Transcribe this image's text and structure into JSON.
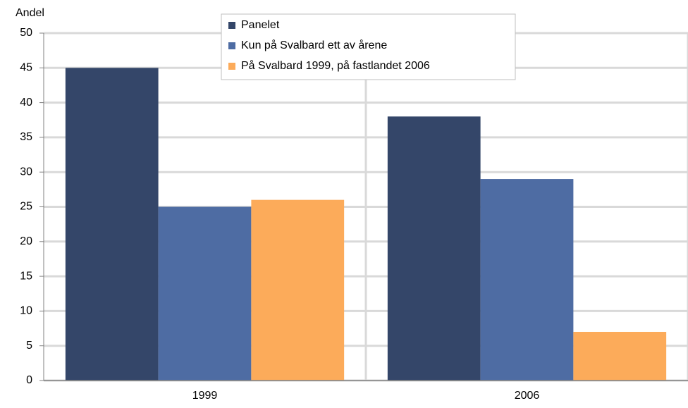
{
  "chart_data": {
    "type": "bar",
    "y_label": "Andel",
    "categories": [
      "1999",
      "2006"
    ],
    "series": [
      {
        "name": "Panelet",
        "color": "#344669",
        "values": [
          45,
          38
        ]
      },
      {
        "name": "Kun på Svalbard ett av årene",
        "color": "#4e6ca3",
        "values": [
          25,
          29
        ]
      },
      {
        "name": "På Svalbard 1999, på fastlandet 2006",
        "color": "#fcab5a",
        "values": [
          26,
          7
        ]
      }
    ],
    "ylim": [
      0,
      50
    ],
    "yticks": [
      0,
      5,
      10,
      15,
      20,
      25,
      30,
      35,
      40,
      45,
      50
    ],
    "grid": true,
    "legend": "top"
  }
}
